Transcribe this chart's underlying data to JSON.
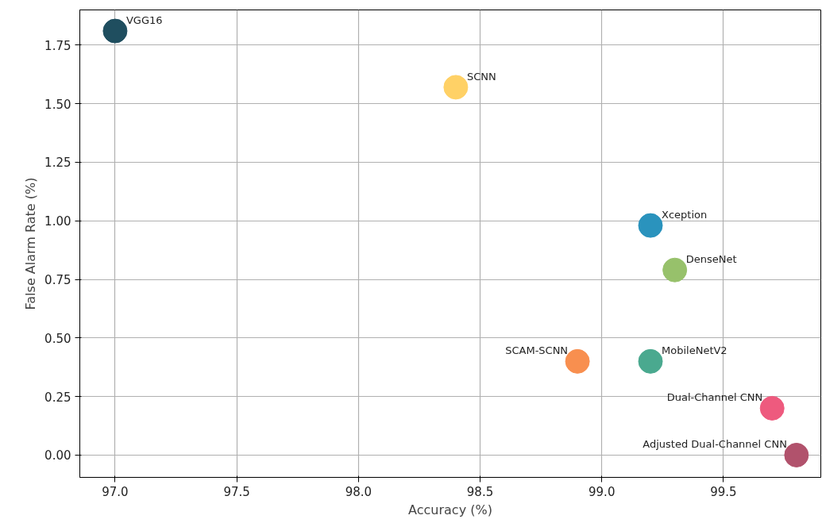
{
  "chart_data": {
    "type": "scatter",
    "xlabel": "Accuracy (%)",
    "ylabel": "False Alarm Rate (%)",
    "x": [
      97.0,
      98.4,
      99.2,
      99.3,
      98.9,
      99.2,
      99.7,
      99.8
    ],
    "values": [
      1.81,
      1.57,
      0.98,
      0.79,
      0.4,
      0.4,
      0.2,
      0.0
    ],
    "colors": [
      "#1f4e5f",
      "#ffd166",
      "#2a93bd",
      "#97c16b",
      "#f88f4f",
      "#4aa98f",
      "#ee5a7e",
      "#b1526c"
    ],
    "annotations": [
      {
        "text": "VGG16",
        "x": 97.0,
        "y": 1.81
      },
      {
        "text": "SCNN",
        "x": 98.4,
        "y": 1.57
      },
      {
        "text": "Xception",
        "x": 99.2,
        "y": 0.98
      },
      {
        "text": "DenseNet",
        "x": 99.3,
        "y": 0.79
      },
      {
        "text": "SCAM-SCNN",
        "x": 98.9,
        "y": 0.4
      },
      {
        "text": "MobileNetV2",
        "x": 99.2,
        "y": 0.4
      },
      {
        "text": "Dual-Channel CNN",
        "x": 99.7,
        "y": 0.2
      },
      {
        "text": "Adjusted Dual-Channel CNN",
        "x": 99.8,
        "y": 0.0
      }
    ],
    "xlim": [
      96.855,
      99.9
    ],
    "ylim": [
      -0.095,
      1.9
    ],
    "xticks": [
      {
        "value": 97.0,
        "label": "97.0"
      },
      {
        "value": 97.5,
        "label": "97.5"
      },
      {
        "value": 98.0,
        "label": "98.0"
      },
      {
        "value": 98.5,
        "label": "98.5"
      },
      {
        "value": 99.0,
        "label": "99.0"
      },
      {
        "value": 99.5,
        "label": "99.5"
      }
    ],
    "yticks": [
      {
        "value": 0,
        "label": "0.00"
      },
      {
        "value": 0.25,
        "label": "0.25"
      },
      {
        "value": 0.5,
        "label": "0.50"
      },
      {
        "value": 0.75,
        "label": "0.75"
      },
      {
        "value": 1.0,
        "label": "1.00"
      },
      {
        "value": 1.25,
        "label": "1.25"
      },
      {
        "value": 1.5,
        "label": "1.50"
      },
      {
        "value": 1.75,
        "label": "1.75"
      }
    ],
    "grid": true,
    "marker": "circle"
  }
}
